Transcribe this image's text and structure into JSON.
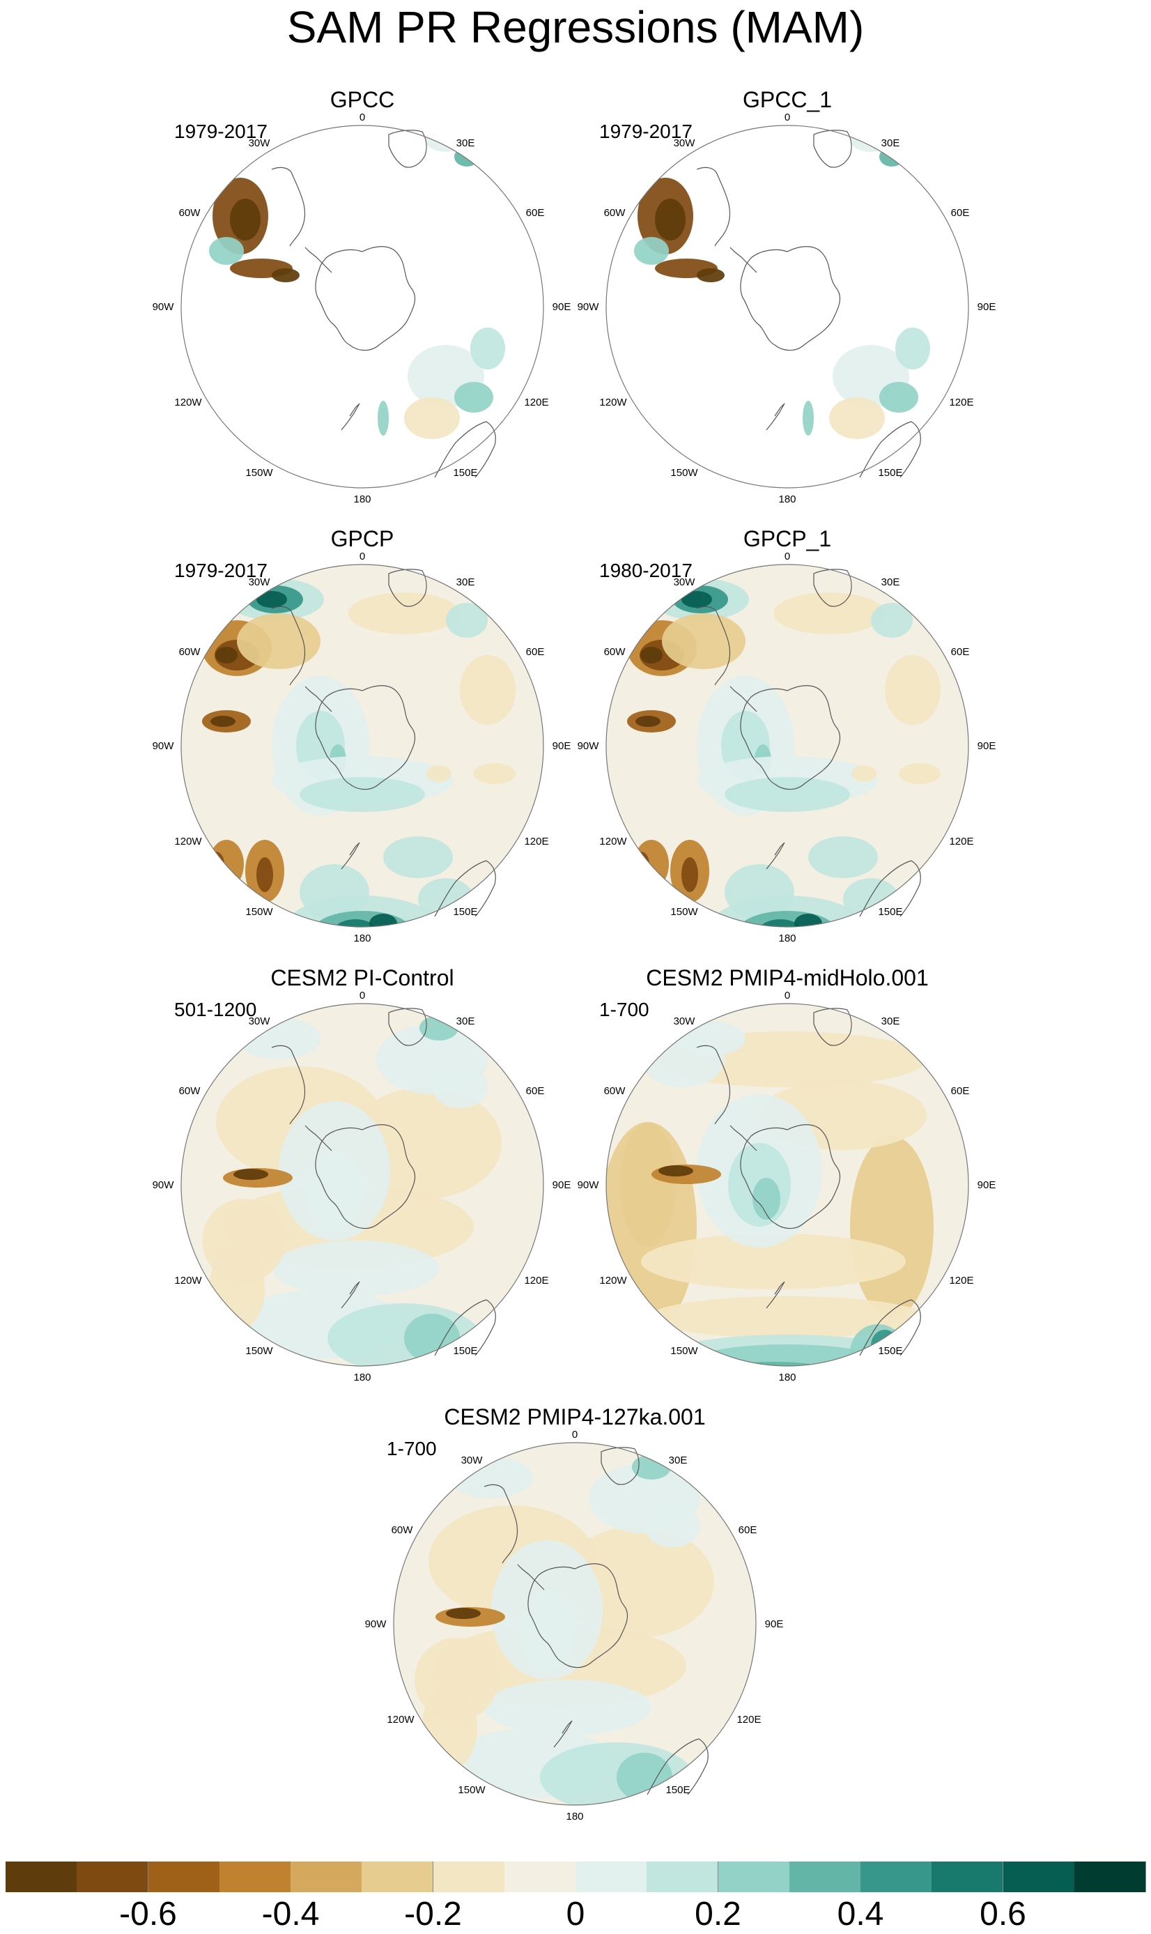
{
  "title": "SAM PR Regressions (MAM)",
  "map_labels": {
    "lon_0": "0",
    "lon_30e": "30E",
    "lon_60e": "60E",
    "lon_90e": "90E",
    "lon_120e": "120E",
    "lon_150e": "150E",
    "lon_180": "180",
    "lon_150w": "150W",
    "lon_120w": "120W",
    "lon_90w": "90W",
    "lon_60w": "60W",
    "lon_30w": "30W"
  },
  "panels": [
    {
      "title": "GPCC",
      "period": "1979-2017",
      "field": "gpcc"
    },
    {
      "title": "GPCC_1",
      "period": "1979-2017",
      "field": "gpcc"
    },
    {
      "title": "GPCP",
      "period": "1979-2017",
      "field": "gpcp"
    },
    {
      "title": "GPCP_1",
      "period": "1980-2017",
      "field": "gpcp"
    },
    {
      "title": "CESM2 PI-Control",
      "period": "501-1200",
      "field": "cesm"
    },
    {
      "title": "CESM2 PMIP4-midHolo.001",
      "period": "1-700",
      "field": "cesm_strong"
    },
    {
      "title": "CESM2 PMIP4-127ka.001",
      "period": "1-700",
      "field": "cesm"
    }
  ],
  "colorbar": {
    "colors": [
      "#5e3c0b",
      "#7f4a12",
      "#9f6018",
      "#c0822f",
      "#d5a95d",
      "#e6cd8f",
      "#f3e6c3",
      "#f4efe3",
      "#e2f0ee",
      "#c0e6df",
      "#93d3c7",
      "#63b6a7",
      "#36978a",
      "#177a6c",
      "#055e51",
      "#003c2f"
    ],
    "tick_labels": [
      "-0.6",
      "-0.4",
      "-0.2",
      "0",
      "0.2",
      "0.4",
      "0.6"
    ]
  }
}
